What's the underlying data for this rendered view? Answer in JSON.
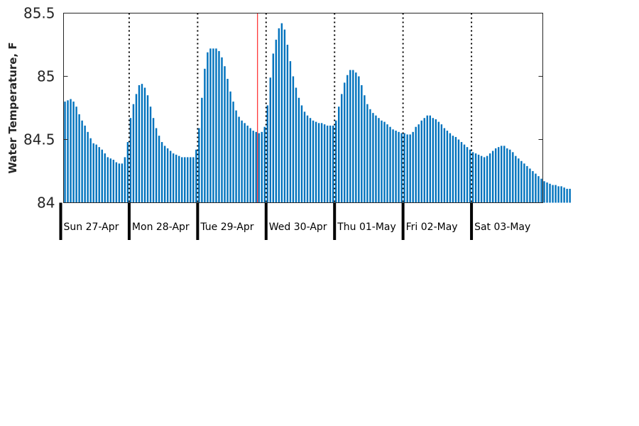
{
  "chart_data": {
    "type": "bar",
    "ylabel": "Water Temperature, F",
    "ylim": [
      84,
      85.5
    ],
    "yticks": [
      84,
      84.5,
      85,
      85.5
    ],
    "ytick_labels": [
      "84",
      "84.5",
      "85",
      "85.5"
    ],
    "x_start": "2020-04-27 00:00",
    "x_end": "2020-05-04 00:00",
    "day_labels": [
      "Sun 27-Apr",
      "Mon 28-Apr",
      "Tue 29-Apr",
      "Wed 30-Apr",
      "Thu 01-May",
      "Fri 02-May",
      "Sat 03-May"
    ],
    "current_time": "2020-04-29 21:00",
    "grid": false,
    "legend": "none",
    "colors": {
      "bar": "#0072BD",
      "current_time_line": "#FF0000",
      "axis": "#262626",
      "day_divider": "#000000"
    },
    "series": [
      {
        "interval_hours": 1,
        "values": [
          84.8,
          84.81,
          84.82,
          84.8,
          84.76,
          84.7,
          84.65,
          84.61,
          84.56,
          84.51,
          84.47,
          84.46,
          84.44,
          84.42,
          84.39,
          84.36,
          84.35,
          84.34,
          84.32,
          84.31,
          84.31,
          84.36,
          84.48,
          84.67,
          84.78,
          84.86,
          84.93,
          84.94,
          84.91,
          84.85,
          84.76,
          84.67,
          84.59,
          84.53,
          84.48,
          84.45,
          84.43,
          84.41,
          84.39,
          84.38,
          84.37,
          84.36,
          84.36,
          84.36,
          84.36,
          84.36,
          84.42,
          84.59,
          84.83,
          85.06,
          85.19,
          85.22,
          85.22,
          85.22,
          85.2,
          85.15,
          85.08,
          84.98,
          84.88,
          84.8,
          84.73,
          84.68,
          84.65,
          84.63,
          84.61,
          84.59,
          84.57,
          84.56,
          84.55,
          84.56,
          84.6,
          84.77,
          84.99,
          85.18,
          85.29,
          85.38,
          85.42,
          85.37,
          85.25,
          85.12,
          85.0,
          84.91,
          84.83,
          84.77,
          84.72,
          84.69,
          84.67,
          84.65,
          84.64,
          84.63,
          84.63,
          84.62,
          84.61,
          84.61,
          84.61,
          84.65,
          84.76,
          84.86,
          84.95,
          85.01,
          85.05,
          85.05,
          85.03,
          85.0,
          84.93,
          84.85,
          84.78,
          84.74,
          84.71,
          84.69,
          84.67,
          84.65,
          84.64,
          84.62,
          84.6,
          84.58,
          84.57,
          84.56,
          84.55,
          84.55,
          84.54,
          84.54,
          84.56,
          84.6,
          84.62,
          84.65,
          84.67,
          84.69,
          84.69,
          84.67,
          84.66,
          84.64,
          84.62,
          84.59,
          84.57,
          84.55,
          84.53,
          84.52,
          84.5,
          84.48,
          84.46,
          84.44,
          84.42,
          84.4,
          84.39,
          84.38,
          84.37,
          84.36,
          84.37,
          84.39,
          84.41,
          84.43,
          84.44,
          84.45,
          84.45,
          84.43,
          84.42,
          84.4,
          84.37,
          84.35,
          84.33,
          84.31,
          84.29,
          84.27,
          84.25,
          84.23,
          84.21,
          84.19,
          84.17,
          84.16,
          84.15,
          84.14,
          84.14,
          84.13,
          84.13,
          84.12,
          84.11,
          84.11
        ]
      }
    ]
  }
}
